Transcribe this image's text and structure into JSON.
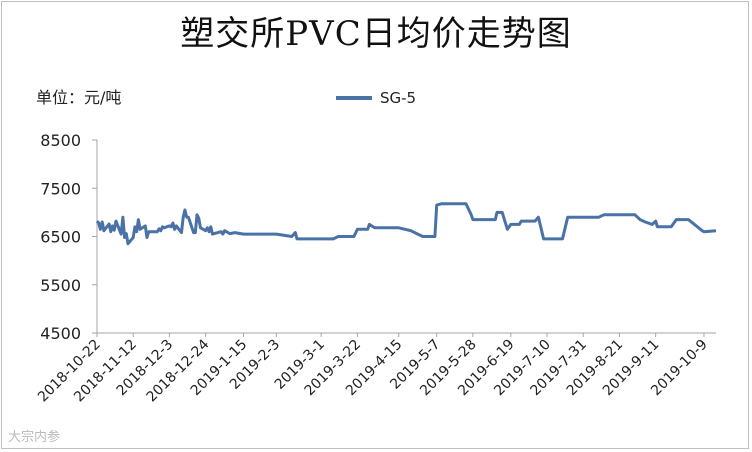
{
  "title": "塑交所PVC日均价走势图",
  "unit_label": "单位：元/吨",
  "watermark": "大宗内参",
  "colors": {
    "series": "#4a72a6",
    "axis": "#a6a6a6",
    "text": "#222222"
  },
  "chart_data": {
    "type": "line",
    "title": "塑交所PVC日均价走势图",
    "ylabel": "单位：元/吨",
    "ylim": [
      4500,
      8500
    ],
    "yticks": [
      4500,
      5500,
      6500,
      7500,
      8500
    ],
    "legend_position": "top-center",
    "grid": false,
    "x_start": "2018-10-22",
    "x_end": "2019-10-16",
    "xtick_labels": [
      "2018-10-22",
      "2018-11-12",
      "2018-12-3",
      "2018-12-24",
      "2019-1-15",
      "2019-2-3",
      "2019-3-1",
      "2019-3-22",
      "2019-4-15",
      "2019-5-7",
      "2019-5-28",
      "2019-6-19",
      "2019-7-10",
      "2019-7-31",
      "2019-8-21",
      "2019-9-11",
      "2019-10-9"
    ],
    "series": [
      {
        "name": "SG-5",
        "points": [
          [
            "2018-10-22",
            6820
          ],
          [
            "2018-10-23",
            6780
          ],
          [
            "2018-10-24",
            6650
          ],
          [
            "2018-10-25",
            6800
          ],
          [
            "2018-10-26",
            6620
          ],
          [
            "2018-10-29",
            6760
          ],
          [
            "2018-10-30",
            6600
          ],
          [
            "2018-10-31",
            6720
          ],
          [
            "2018-11-1",
            6630
          ],
          [
            "2018-11-2",
            6820
          ],
          [
            "2018-11-5",
            6550
          ],
          [
            "2018-11-6",
            6900
          ],
          [
            "2018-11-7",
            6480
          ],
          [
            "2018-11-8",
            6560
          ],
          [
            "2018-11-9",
            6350
          ],
          [
            "2018-11-12",
            6480
          ],
          [
            "2018-11-13",
            6700
          ],
          [
            "2018-11-14",
            6600
          ],
          [
            "2018-11-15",
            6850
          ],
          [
            "2018-11-16",
            6650
          ],
          [
            "2018-11-19",
            6720
          ],
          [
            "2018-11-20",
            6480
          ],
          [
            "2018-11-21",
            6600
          ],
          [
            "2018-11-22",
            6600
          ],
          [
            "2018-11-26",
            6600
          ],
          [
            "2018-11-27",
            6660
          ],
          [
            "2018-11-28",
            6620
          ],
          [
            "2018-11-29",
            6700
          ],
          [
            "2018-11-30",
            6680
          ],
          [
            "2018-12-3",
            6720
          ],
          [
            "2018-12-4",
            6700
          ],
          [
            "2018-12-5",
            6780
          ],
          [
            "2018-12-6",
            6650
          ],
          [
            "2018-12-7",
            6720
          ],
          [
            "2018-12-10",
            6580
          ],
          [
            "2018-12-11",
            6900
          ],
          [
            "2018-12-12",
            7050
          ],
          [
            "2018-12-13",
            6900
          ],
          [
            "2018-12-14",
            6900
          ],
          [
            "2018-12-17",
            6580
          ],
          [
            "2018-12-18",
            6580
          ],
          [
            "2018-12-19",
            6950
          ],
          [
            "2018-12-20",
            6880
          ],
          [
            "2018-12-21",
            6680
          ],
          [
            "2018-12-24",
            6620
          ],
          [
            "2018-12-25",
            6680
          ],
          [
            "2018-12-26",
            6600
          ],
          [
            "2018-12-27",
            6700
          ],
          [
            "2018-12-28",
            6550
          ],
          [
            "2019-1-2",
            6600
          ],
          [
            "2019-1-3",
            6550
          ],
          [
            "2019-1-4",
            6620
          ],
          [
            "2019-1-7",
            6560
          ],
          [
            "2019-1-10",
            6580
          ],
          [
            "2019-1-15",
            6550
          ],
          [
            "2019-1-21",
            6550
          ],
          [
            "2019-2-3",
            6550
          ],
          [
            "2019-2-12",
            6500
          ],
          [
            "2019-2-14",
            6580
          ],
          [
            "2019-2-15",
            6450
          ],
          [
            "2019-2-20",
            6450
          ],
          [
            "2019-3-1",
            6450
          ],
          [
            "2019-3-8",
            6450
          ],
          [
            "2019-3-11",
            6500
          ],
          [
            "2019-3-20",
            6500
          ],
          [
            "2019-3-22",
            6650
          ],
          [
            "2019-3-28",
            6650
          ],
          [
            "2019-3-29",
            6750
          ],
          [
            "2019-4-1",
            6680
          ],
          [
            "2019-4-15",
            6680
          ],
          [
            "2019-4-22",
            6620
          ],
          [
            "2019-4-26",
            6550
          ],
          [
            "2019-4-29",
            6500
          ],
          [
            "2019-5-6",
            6500
          ],
          [
            "2019-5-7",
            7150
          ],
          [
            "2019-5-10",
            7180
          ],
          [
            "2019-5-24",
            7180
          ],
          [
            "2019-5-27",
            6950
          ],
          [
            "2019-5-28",
            6850
          ],
          [
            "2019-6-10",
            6850
          ],
          [
            "2019-6-11",
            7000
          ],
          [
            "2019-6-14",
            7000
          ],
          [
            "2019-6-17",
            6650
          ],
          [
            "2019-6-19",
            6750
          ],
          [
            "2019-6-24",
            6750
          ],
          [
            "2019-6-25",
            6820
          ],
          [
            "2019-7-3",
            6820
          ],
          [
            "2019-7-5",
            6900
          ],
          [
            "2019-7-8",
            6450
          ],
          [
            "2019-7-10",
            6450
          ],
          [
            "2019-7-19",
            6450
          ],
          [
            "2019-7-22",
            6900
          ],
          [
            "2019-7-31",
            6900
          ],
          [
            "2019-8-9",
            6900
          ],
          [
            "2019-8-12",
            6950
          ],
          [
            "2019-8-21",
            6950
          ],
          [
            "2019-8-30",
            6950
          ],
          [
            "2019-9-2",
            6850
          ],
          [
            "2019-9-5",
            6800
          ],
          [
            "2019-9-9",
            6750
          ],
          [
            "2019-9-11",
            6820
          ],
          [
            "2019-9-12",
            6700
          ],
          [
            "2019-9-20",
            6700
          ],
          [
            "2019-9-23",
            6850
          ],
          [
            "2019-9-30",
            6850
          ],
          [
            "2019-10-8",
            6620
          ],
          [
            "2019-10-9",
            6600
          ],
          [
            "2019-10-16",
            6620
          ]
        ]
      }
    ]
  }
}
